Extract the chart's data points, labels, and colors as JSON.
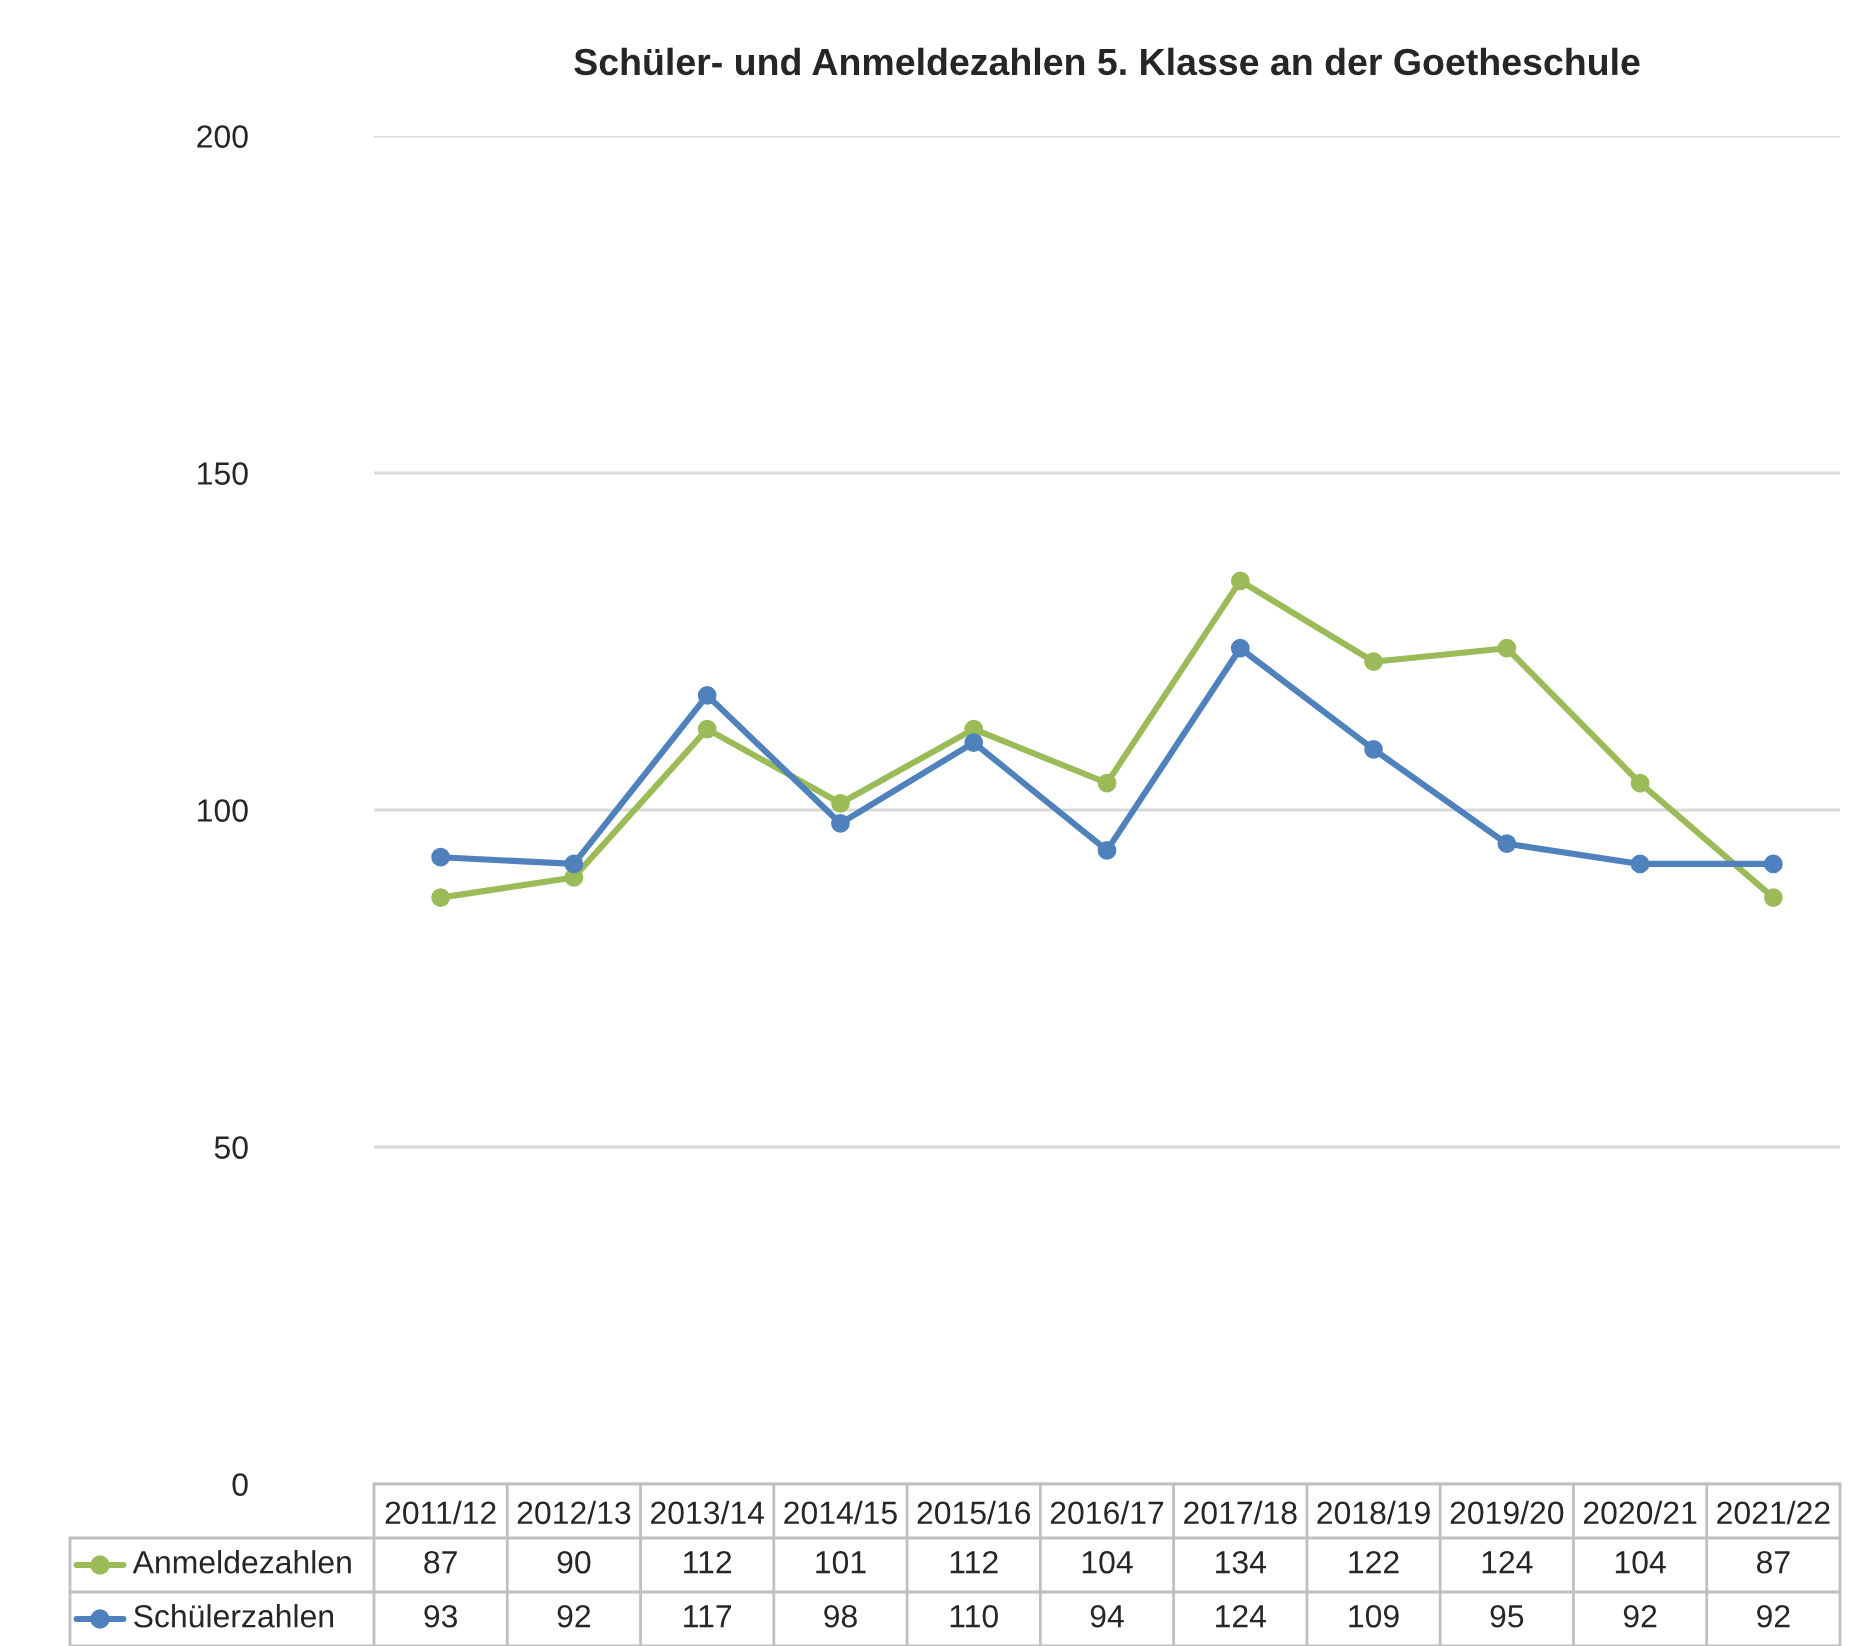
{
  "chart_data": {
    "type": "line",
    "title": "Schüler- und Anmeldezahlen 5. Klasse an der Goetheschule",
    "categories": [
      "2011/12",
      "2012/13",
      "2013/14",
      "2014/15",
      "2015/16",
      "2016/17",
      "2017/18",
      "2018/19",
      "2019/20",
      "2020/21",
      "2021/22"
    ],
    "series": [
      {
        "name": "Anmeldezahlen",
        "color": "#9bbb59",
        "values": [
          87,
          90,
          112,
          101,
          112,
          104,
          134,
          122,
          124,
          104,
          87
        ]
      },
      {
        "name": "Schülerzahlen",
        "color": "#4f81bd",
        "values": [
          93,
          92,
          117,
          98,
          110,
          94,
          124,
          109,
          95,
          92,
          92
        ]
      }
    ],
    "ylim": [
      0,
      200
    ],
    "yticks": [
      0,
      50,
      100,
      150,
      200
    ],
    "grid": "y",
    "marker": "circle",
    "line_style": "solid",
    "legend": "bottom left",
    "data_labels": true
  }
}
